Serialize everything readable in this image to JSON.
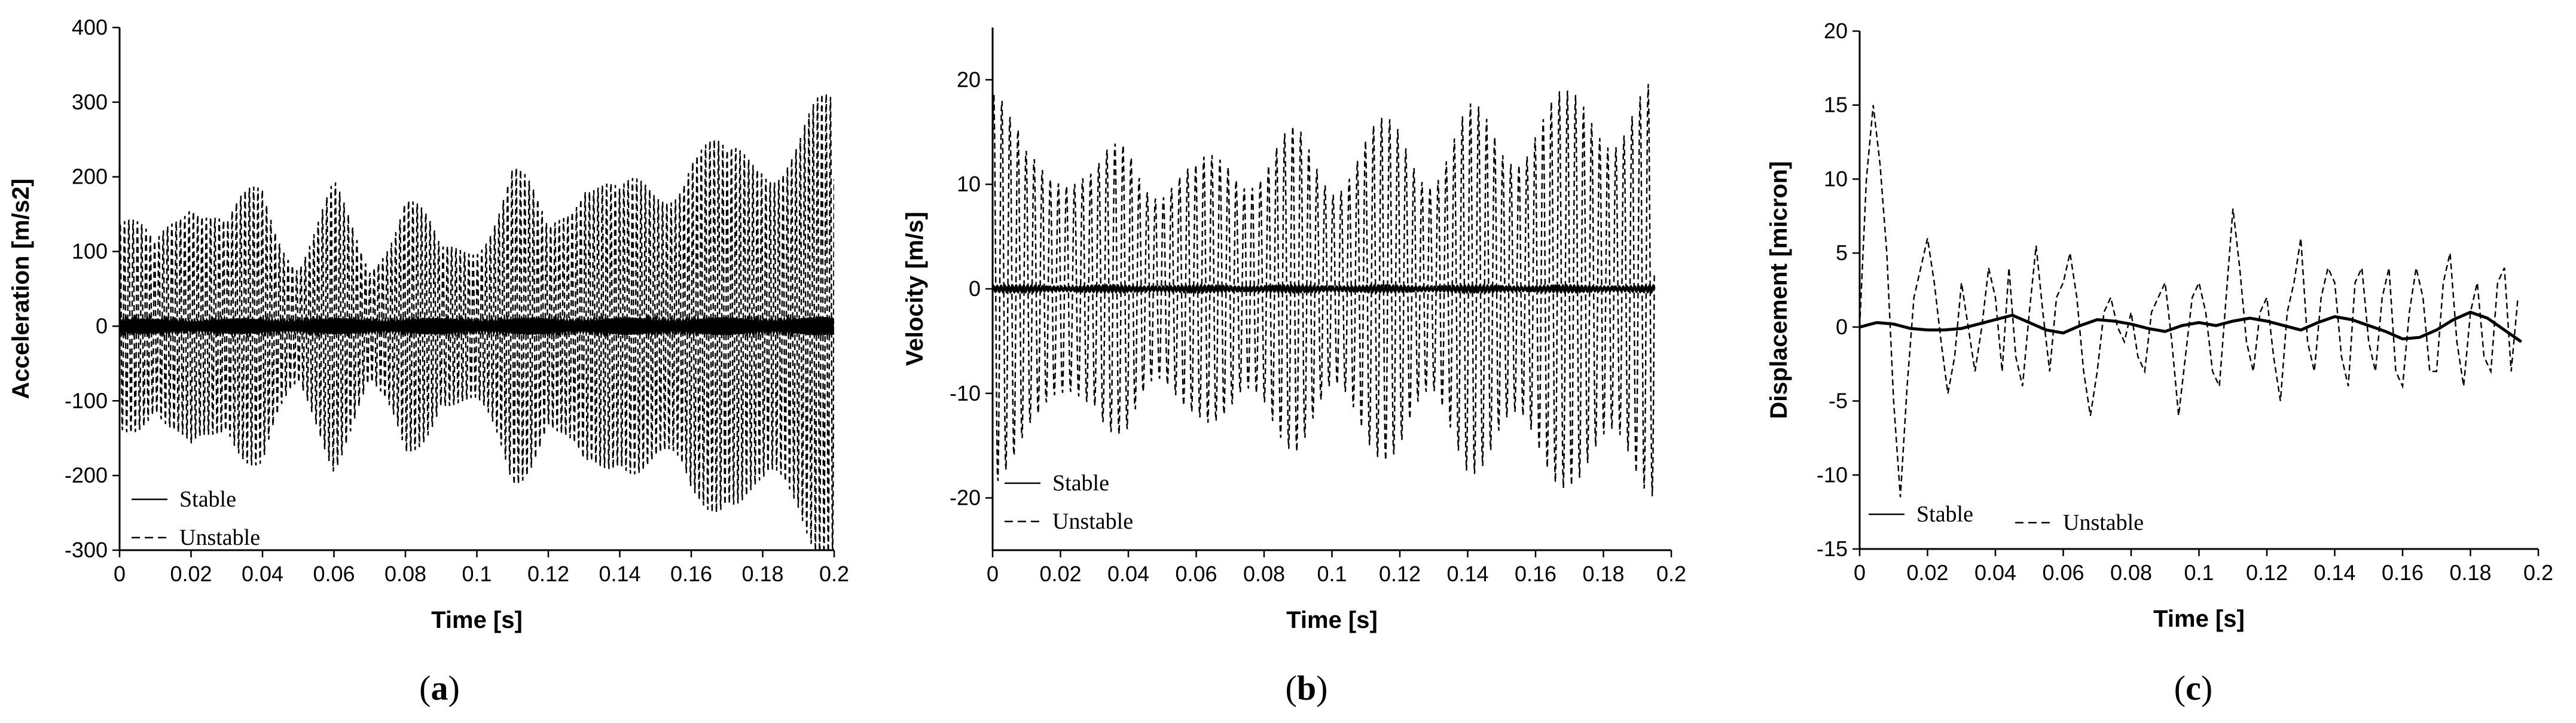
{
  "chart_data": [
    {
      "type": "line",
      "panel_label": "a",
      "xlabel": "Time [s]",
      "ylabel": "Acceleration [m/s2]",
      "xlim": [
        0,
        0.2
      ],
      "ylim": [
        -300,
        400
      ],
      "xticks": [
        "0",
        "0.02",
        "0.04",
        "0.06",
        "0.08",
        "0.1",
        "0.12",
        "0.14",
        "0.16",
        "0.18",
        "0.2"
      ],
      "yticks": [
        "-300",
        "-200",
        "-100",
        "0",
        "100",
        "200",
        "300",
        "400"
      ],
      "legend_position": "bottom-left",
      "grid": false,
      "series": [
        {
          "name": "Stable",
          "style": "solid",
          "amplitude_envelope": {
            "x": [
              0,
              0.2
            ],
            "y": [
              10,
              12
            ]
          },
          "frequency_hz": 1200
        },
        {
          "name": "Unstable",
          "style": "dashed",
          "amplitude_envelope": {
            "x": [
              0,
              0.01,
              0.02,
              0.03,
              0.04,
              0.05,
              0.06,
              0.07,
              0.08,
              0.09,
              0.1,
              0.11,
              0.12,
              0.13,
              0.14,
              0.15,
              0.16,
              0.17,
              0.18,
              0.19,
              0.2
            ],
            "y": [
              170,
              120,
              250,
              150,
              220,
              110,
              200,
              100,
              220,
              110,
              150,
              240,
              150,
              280,
              190,
              230,
              300,
              240,
              310,
              290,
              330
            ]
          },
          "frequency_hz": 830
        }
      ]
    },
    {
      "type": "line",
      "panel_label": "b",
      "xlabel": "Time [s]",
      "ylabel": "Velocity [m/s]",
      "xlim": [
        0,
        0.2
      ],
      "ylim": [
        -25,
        25
      ],
      "xticks": [
        "0",
        "0.02",
        "0.04",
        "0.06",
        "0.08",
        "0.1",
        "0.12",
        "0.14",
        "0.16",
        "0.18",
        "0.2"
      ],
      "yticks": [
        "-20",
        "-10",
        "0",
        "10",
        "20"
      ],
      "legend_position": "bottom-left",
      "grid": false,
      "series": [
        {
          "name": "Stable",
          "style": "solid",
          "amplitude_envelope": {
            "x": [
              0,
              0.195
            ],
            "y": [
              0.3,
              0.3
            ]
          },
          "frequency_hz": 900
        },
        {
          "name": "Unstable",
          "style": "dashed",
          "amplitude_envelope": {
            "x": [
              0,
              0.005,
              0.01,
              0.02,
              0.03,
              0.04,
              0.05,
              0.06,
              0.07,
              0.08,
              0.09,
              0.1,
              0.11,
              0.12,
              0.13,
              0.14,
              0.15,
              0.16,
              0.17,
              0.18,
              0.19,
              0.195
            ],
            "y": [
              23,
              17,
              14,
              16,
              12,
              16,
              13,
              12,
              16,
              14,
              16,
              14,
              16,
              17,
              15,
              18,
              17,
              20,
              19,
              21,
              21,
              20
            ]
          },
          "frequency_hz": 420
        }
      ]
    },
    {
      "type": "line",
      "panel_label": "c",
      "xlabel": "Time [s]",
      "ylabel": "Displacement [micron]",
      "xlim": [
        0,
        0.2
      ],
      "ylim": [
        -15,
        20
      ],
      "xticks": [
        "0",
        "0.02",
        "0.04",
        "0.06",
        "0.08",
        "0.1",
        "0.12",
        "0.14",
        "0.16",
        "0.18",
        "0.2"
      ],
      "yticks": [
        "-15",
        "-10",
        "-5",
        "0",
        "5",
        "10",
        "15",
        "20"
      ],
      "legend_position": "bottom-left",
      "grid": false,
      "series": [
        {
          "name": "Stable",
          "style": "solid",
          "x": [
            0,
            0.005,
            0.01,
            0.015,
            0.02,
            0.025,
            0.03,
            0.035,
            0.04,
            0.045,
            0.05,
            0.055,
            0.06,
            0.065,
            0.07,
            0.075,
            0.08,
            0.085,
            0.09,
            0.095,
            0.1,
            0.105,
            0.11,
            0.115,
            0.12,
            0.125,
            0.13,
            0.135,
            0.14,
            0.145,
            0.15,
            0.155,
            0.16,
            0.165,
            0.17,
            0.175,
            0.18,
            0.185,
            0.19,
            0.195
          ],
          "y": [
            0,
            0.3,
            0.2,
            -0.1,
            -0.2,
            -0.2,
            -0.1,
            0.2,
            0.5,
            0.8,
            0.3,
            -0.2,
            -0.4,
            0.1,
            0.5,
            0.4,
            0.2,
            -0.1,
            -0.3,
            0.1,
            0.3,
            0.1,
            0.4,
            0.6,
            0.4,
            0.1,
            -0.2,
            0.3,
            0.7,
            0.5,
            0.1,
            -0.3,
            -0.8,
            -0.7,
            -0.2,
            0.5,
            1.0,
            0.6,
            -0.2,
            -1.0
          ]
        },
        {
          "name": "Unstable",
          "style": "dashed",
          "x": [
            0,
            0.002,
            0.004,
            0.006,
            0.008,
            0.01,
            0.012,
            0.014,
            0.016,
            0.018,
            0.02,
            0.022,
            0.024,
            0.026,
            0.028,
            0.03,
            0.032,
            0.034,
            0.036,
            0.038,
            0.04,
            0.042,
            0.044,
            0.046,
            0.048,
            0.05,
            0.052,
            0.054,
            0.056,
            0.058,
            0.06,
            0.062,
            0.064,
            0.066,
            0.068,
            0.07,
            0.072,
            0.074,
            0.076,
            0.078,
            0.08,
            0.082,
            0.084,
            0.086,
            0.088,
            0.09,
            0.092,
            0.094,
            0.096,
            0.098,
            0.1,
            0.102,
            0.104,
            0.106,
            0.108,
            0.11,
            0.112,
            0.114,
            0.116,
            0.118,
            0.12,
            0.122,
            0.124,
            0.126,
            0.128,
            0.13,
            0.132,
            0.134,
            0.136,
            0.138,
            0.14,
            0.142,
            0.144,
            0.146,
            0.148,
            0.15,
            0.152,
            0.154,
            0.156,
            0.158,
            0.16,
            0.162,
            0.164,
            0.166,
            0.168,
            0.17,
            0.172,
            0.174,
            0.176,
            0.178,
            0.18,
            0.182,
            0.184,
            0.186,
            0.188,
            0.19,
            0.192,
            0.194
          ],
          "y": [
            0,
            10,
            15,
            11,
            5,
            -5,
            -11.5,
            -4,
            2,
            4,
            6,
            3,
            -1,
            -4.5,
            -2,
            3,
            0,
            -3,
            0,
            4,
            2,
            -3,
            4,
            -2,
            -4,
            1,
            5.5,
            1,
            -3,
            2,
            3,
            5,
            2,
            -3,
            -6,
            -3,
            1,
            2,
            0,
            -1,
            1,
            -2,
            -3,
            1,
            2,
            3,
            -1,
            -6,
            -2,
            2,
            3,
            1,
            -3,
            -4,
            2,
            8,
            4,
            -1,
            -3,
            1,
            2,
            -2,
            -5,
            1,
            3,
            6,
            -1,
            -3,
            2,
            4,
            3,
            -2,
            -4,
            3,
            4,
            -1,
            -3,
            2,
            4,
            -3,
            -4,
            1,
            4,
            2,
            -3,
            -3,
            3,
            5,
            -1,
            -4,
            1,
            3,
            -2,
            -3,
            3,
            4,
            -3,
            2
          ]
        }
      ]
    }
  ]
}
